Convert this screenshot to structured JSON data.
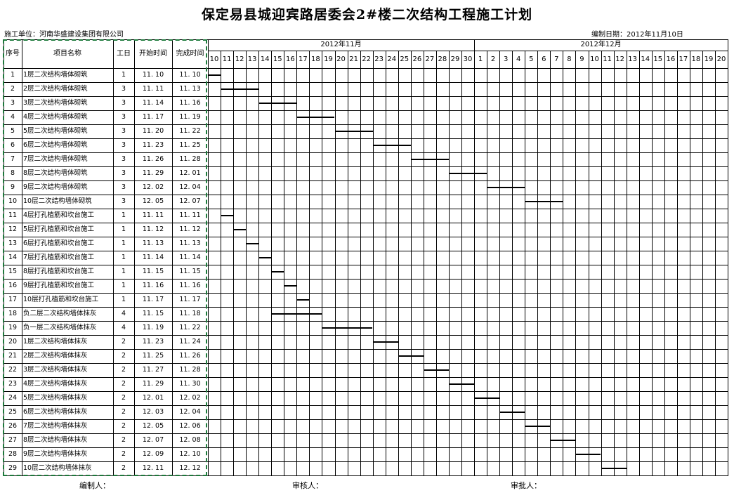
{
  "title": "保定易县城迎宾路居委会2#楼二次结构工程施工计划",
  "contractor": "施工单位：河南华盛建设集团有限公司",
  "compile_date": "编制日期：2012年11月10日",
  "headers": {
    "no": "序号",
    "name": "项目名称",
    "days": "工日",
    "start": "开始时间",
    "end": "完成时间"
  },
  "months": [
    "2012年11月",
    "2012年12月"
  ],
  "day_labels": [
    "10",
    "11",
    "12",
    "13",
    "14",
    "15",
    "16",
    "17",
    "18",
    "19",
    "20",
    "21",
    "22",
    "23",
    "24",
    "25",
    "26",
    "27",
    "28",
    "29",
    "30",
    "1",
    "2",
    "3",
    "4",
    "5",
    "6",
    "7",
    "8",
    "9",
    "10",
    "11",
    "12",
    "13",
    "14",
    "15",
    "16",
    "17",
    "18",
    "19",
    "20"
  ],
  "tasks": [
    {
      "no": "1",
      "name": "1层二次结构墙体砌筑",
      "days": "1",
      "start": "11.10",
      "end": "11.10"
    },
    {
      "no": "2",
      "name": "2层二次结构墙体砌筑",
      "days": "3",
      "start": "11.11",
      "end": "11.13"
    },
    {
      "no": "3",
      "name": "3层二次结构墙体砌筑",
      "days": "3",
      "start": "11.14",
      "end": "11.16"
    },
    {
      "no": "4",
      "name": "4层二次结构墙体砌筑",
      "days": "3",
      "start": "11.17",
      "end": "11.19"
    },
    {
      "no": "5",
      "name": "5层二次结构墙体砌筑",
      "days": "3",
      "start": "11.20",
      "end": "11.22"
    },
    {
      "no": "6",
      "name": "6层二次结构墙体砌筑",
      "days": "3",
      "start": "11.23",
      "end": "11.25"
    },
    {
      "no": "7",
      "name": "7层二次结构墙体砌筑",
      "days": "3",
      "start": "11.26",
      "end": "11.28"
    },
    {
      "no": "8",
      "name": "8层二次结构墙体砌筑",
      "days": "3",
      "start": "11.29",
      "end": "12.01"
    },
    {
      "no": "9",
      "name": "9层二次结构墙体砌筑",
      "days": "3",
      "start": "12.02",
      "end": "12.04"
    },
    {
      "no": "10",
      "name": "10层二次结构墙体砌筑",
      "days": "3",
      "start": "12.05",
      "end": "12.07"
    },
    {
      "no": "11",
      "name": "4层打孔植筋和坎台施工",
      "days": "1",
      "start": "11.11",
      "end": "11.11"
    },
    {
      "no": "12",
      "name": "5层打孔植筋和坎台施工",
      "days": "1",
      "start": "11.12",
      "end": "11.12"
    },
    {
      "no": "13",
      "name": "6层打孔植筋和坎台施工",
      "days": "1",
      "start": "11.13",
      "end": "11.13"
    },
    {
      "no": "14",
      "name": "7层打孔植筋和坎台施工",
      "days": "1",
      "start": "11.14",
      "end": "11.14"
    },
    {
      "no": "15",
      "name": "8层打孔植筋和坎台施工",
      "days": "1",
      "start": "11.15",
      "end": "11.15"
    },
    {
      "no": "16",
      "name": "9层打孔植筋和坎台施工",
      "days": "1",
      "start": "11.16",
      "end": "11.16"
    },
    {
      "no": "17",
      "name": "10层打孔植筋和坎台施工",
      "days": "1",
      "start": "11.17",
      "end": "11.17"
    },
    {
      "no": "18",
      "name": "负二层二次结构墙体抹灰",
      "days": "4",
      "start": "11.15",
      "end": "11.18"
    },
    {
      "no": "19",
      "name": "负一层二次结构墙体抹灰",
      "days": "4",
      "start": "11.19",
      "end": "11.22"
    },
    {
      "no": "20",
      "name": "1层二次结构墙体抹灰",
      "days": "2",
      "start": "11.23",
      "end": "11.24"
    },
    {
      "no": "21",
      "name": "2层二次结构墙体抹灰",
      "days": "2",
      "start": "11.25",
      "end": "11.26"
    },
    {
      "no": "22",
      "name": "3层二次结构墙体抹灰",
      "days": "2",
      "start": "11.27",
      "end": "11.28"
    },
    {
      "no": "23",
      "name": "4层二次结构墙体抹灰",
      "days": "2",
      "start": "11.29",
      "end": "11.30"
    },
    {
      "no": "24",
      "name": "5层二次结构墙体抹灰",
      "days": "2",
      "start": "12.01",
      "end": "12.02"
    },
    {
      "no": "25",
      "name": "6层二次结构墙体抹灰",
      "days": "2",
      "start": "12.03",
      "end": "12.04"
    },
    {
      "no": "26",
      "name": "7层二次结构墙体抹灰",
      "days": "2",
      "start": "12.05",
      "end": "12.06"
    },
    {
      "no": "27",
      "name": "8层二次结构墙体抹灰",
      "days": "2",
      "start": "12.07",
      "end": "12.08"
    },
    {
      "no": "28",
      "name": "9层二次结构墙体抹灰",
      "days": "2",
      "start": "12.09",
      "end": "12.10"
    },
    {
      "no": "29",
      "name": "10层二次结构墙体抹灰",
      "days": "2",
      "start": "12.11",
      "end": "12.12"
    }
  ],
  "footer": {
    "compiled_by": "编制人：",
    "reviewed_by": "审核人：",
    "approved_by": "审批人："
  },
  "colors": {
    "grid": "#000000",
    "bar": "#000000",
    "selection": "#1e7a3c"
  }
}
